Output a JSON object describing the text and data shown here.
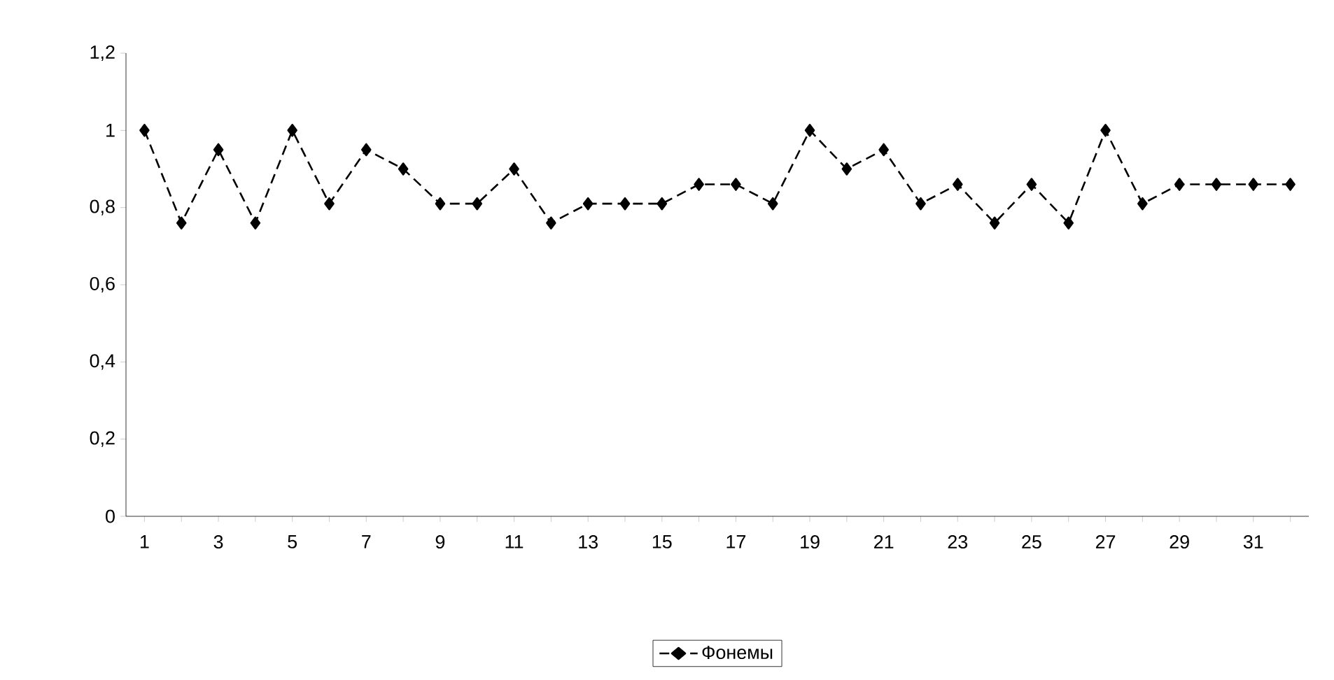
{
  "chart_data": {
    "type": "line",
    "categories": [
      "1",
      null,
      "3",
      null,
      "5",
      null,
      "7",
      null,
      "9",
      null,
      "11",
      null,
      "13",
      null,
      "15",
      null,
      "17",
      null,
      "19",
      null,
      "21",
      null,
      "23",
      null,
      "25",
      null,
      "27",
      null,
      "29",
      null,
      "31",
      null
    ],
    "series": [
      {
        "name": "Фонемы",
        "color": "#000000",
        "values": [
          1,
          0.76,
          0.95,
          0.76,
          1,
          0.81,
          0.95,
          0.9,
          0.81,
          0.81,
          0.9,
          0.76,
          0.81,
          0.81,
          0.81,
          0.86,
          0.86,
          0.81,
          1,
          0.9,
          0.95,
          0.81,
          0.86,
          0.76,
          0.86,
          0.76,
          1,
          0.81,
          0.86,
          0.86,
          0.86,
          0.86
        ]
      }
    ],
    "ylim": [
      0,
      1.2
    ],
    "yticks": [
      0,
      {
        "value": 0.2,
        "label": "0,2"
      },
      {
        "value": 0.4,
        "label": "0,4"
      },
      {
        "value": 0.6,
        "label": "0,6"
      },
      {
        "value": 0.8,
        "label": "0,8"
      },
      1,
      {
        "value": 1.2,
        "label": "1,2"
      }
    ],
    "grid": false,
    "legend": "bottom",
    "marker": "diamond",
    "line_style": "dashed"
  }
}
